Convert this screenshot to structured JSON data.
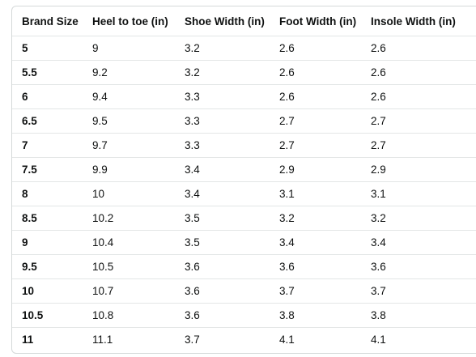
{
  "size_chart": {
    "headers": [
      "Brand Size",
      "Heel to toe (in)",
      "Shoe Width (in)",
      "Foot Width (in)",
      "Insole Width (in)"
    ],
    "rows": [
      [
        "5",
        "9",
        "3.2",
        "2.6",
        "2.6"
      ],
      [
        "5.5",
        "9.2",
        "3.2",
        "2.6",
        "2.6"
      ],
      [
        "6",
        "9.4",
        "3.3",
        "2.6",
        "2.6"
      ],
      [
        "6.5",
        "9.5",
        "3.3",
        "2.7",
        "2.7"
      ],
      [
        "7",
        "9.7",
        "3.3",
        "2.7",
        "2.7"
      ],
      [
        "7.5",
        "9.9",
        "3.4",
        "2.9",
        "2.9"
      ],
      [
        "8",
        "10",
        "3.4",
        "3.1",
        "3.1"
      ],
      [
        "8.5",
        "10.2",
        "3.5",
        "3.2",
        "3.2"
      ],
      [
        "9",
        "10.4",
        "3.5",
        "3.4",
        "3.4"
      ],
      [
        "9.5",
        "10.5",
        "3.6",
        "3.6",
        "3.6"
      ],
      [
        "10",
        "10.7",
        "3.6",
        "3.7",
        "3.7"
      ],
      [
        "10.5",
        "10.8",
        "3.6",
        "3.8",
        "3.8"
      ],
      [
        "11",
        "11.1",
        "3.7",
        "4.1",
        "4.1"
      ]
    ]
  },
  "colors": {
    "text": "#0f1111",
    "border": "#d5d9d9",
    "row_divider": "#e3e6e6"
  }
}
